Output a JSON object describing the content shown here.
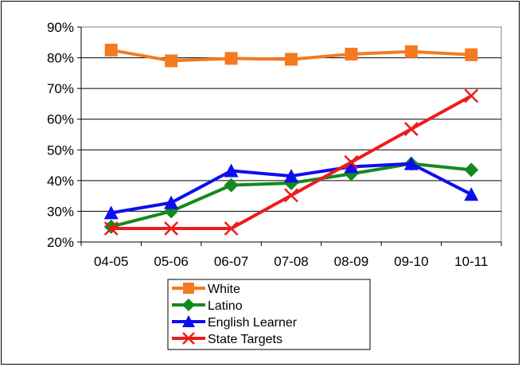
{
  "chart_data": {
    "type": "line",
    "title": "",
    "xlabel": "",
    "ylabel": "",
    "categories": [
      "04-05",
      "05-06",
      "06-07",
      "07-08",
      "08-09",
      "09-10",
      "10-11"
    ],
    "y_ticks": [
      "20%",
      "30%",
      "40%",
      "50%",
      "60%",
      "70%",
      "80%",
      "90%"
    ],
    "ylim": [
      20,
      90
    ],
    "grid": true,
    "legend_position": "bottom",
    "series": [
      {
        "name": "White",
        "color": "#f47a20",
        "marker": "square",
        "values": [
          82.5,
          79,
          79.8,
          79.5,
          81.2,
          82,
          81
        ]
      },
      {
        "name": "Latino",
        "color": "#138a1c",
        "marker": "diamond",
        "values": [
          25,
          30,
          38.5,
          39.2,
          42.2,
          45.5,
          43.5
        ]
      },
      {
        "name": "English Learner",
        "color": "#0d0df0",
        "marker": "triangle",
        "values": [
          29.5,
          32.8,
          43.2,
          41.5,
          44.5,
          45.5,
          35.5
        ]
      },
      {
        "name": "State Targets",
        "color": "#ee1b1b",
        "marker": "x",
        "values": [
          24.4,
          24.4,
          24.4,
          35.2,
          46,
          56.8,
          67.6
        ]
      }
    ]
  }
}
